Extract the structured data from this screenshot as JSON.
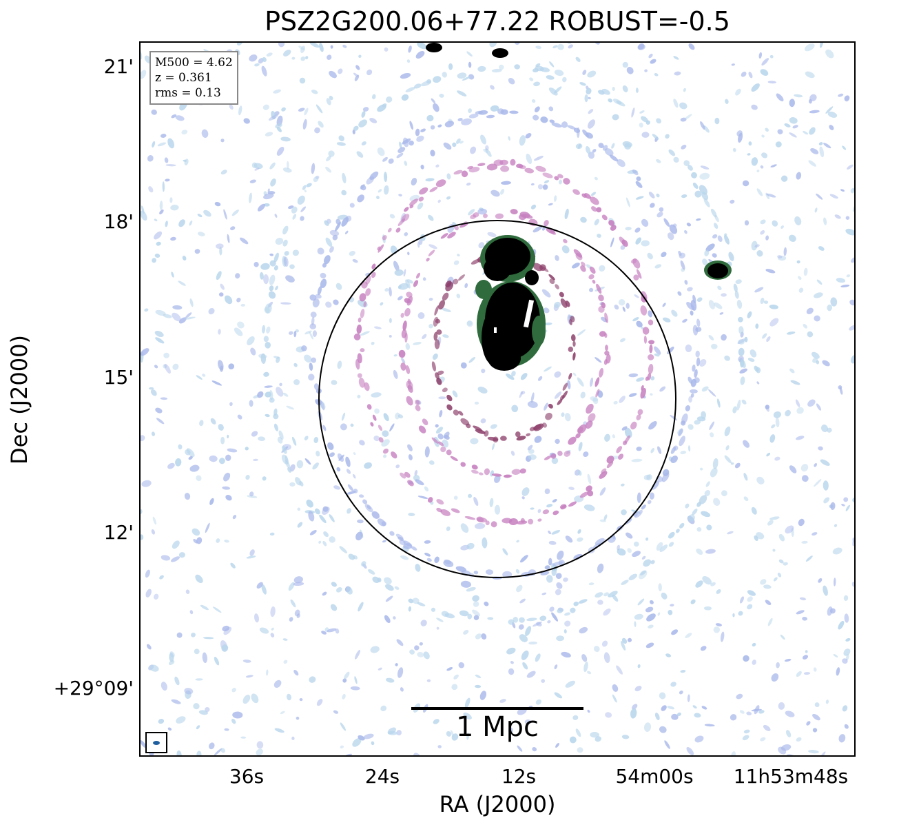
{
  "figure": {
    "title": "PSZ2G200.06+77.22 ROBUST=-0.5",
    "xlabel": "RA (J2000)",
    "ylabel": "Dec (J2000)",
    "x_ticks": [
      "36s",
      "24s",
      "12s",
      "54m00s",
      "11h53m48s"
    ],
    "y_ticks": [
      "21'",
      "18'",
      "15'",
      "12'",
      "+29°09'"
    ],
    "info": {
      "m500": "M500 = 4.62",
      "z": "z = 0.361",
      "rms": "rms = 0.13"
    },
    "scale_bar_label": "1 Mpc",
    "colors": {
      "noise_light": "#b9d6ec",
      "noise_blue": "#a9b8ea",
      "ring_magenta": "#c67fbf",
      "ring_dark": "#8c3f6a",
      "source_green": "#2f6b3c",
      "source_core": "#000000",
      "beam": "#1f5fa0"
    }
  }
}
